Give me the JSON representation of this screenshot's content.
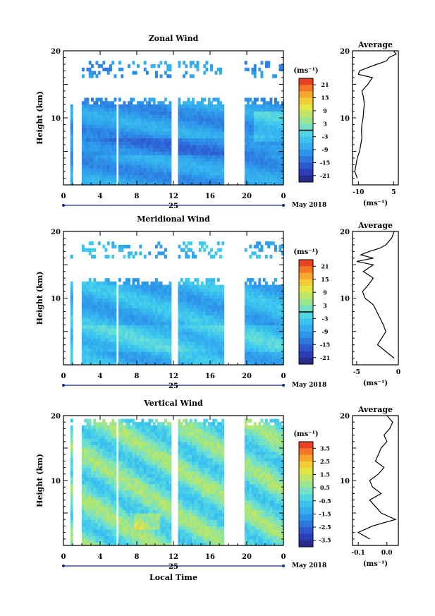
{
  "chart_data": [
    {
      "type": "heatmap",
      "title": "Zonal Wind",
      "ylabel": "Height (km)",
      "ylim": [
        0,
        20
      ],
      "yticks_labeled": [
        "10",
        "20"
      ],
      "xticks": [
        "0",
        "4",
        "8",
        "12",
        "16",
        "20",
        "0"
      ],
      "date_label": "25",
      "month_label": "May 2018",
      "colorbar": {
        "unit": "(ms⁻¹)",
        "ticks": [
          "21",
          "15",
          "9",
          "3",
          "-3",
          "-9",
          "-15",
          "-21"
        ],
        "range": [
          -24,
          24
        ],
        "contour_level": 0
      },
      "data_gaps_hours": [
        [
          5.75,
          6.0
        ],
        [
          11.7,
          12.3
        ],
        [
          17.3,
          19.75
        ]
      ],
      "data_top_km": 13,
      "upper_band_km": [
        16,
        18.5
      ],
      "average_profile": {
        "title": "Average",
        "xlabel": "(ms⁻¹)",
        "xticks": [
          "-10",
          "5"
        ],
        "xlim": [
          -12.5,
          7
        ],
        "profile": [
          [
            -10.5,
            1
          ],
          [
            -11.5,
            2
          ],
          [
            -11,
            3
          ],
          [
            -10.5,
            4
          ],
          [
            -9.5,
            5
          ],
          [
            -9,
            6
          ],
          [
            -8.5,
            7
          ],
          [
            -8.7,
            8
          ],
          [
            -8.5,
            9
          ],
          [
            -8,
            10
          ],
          [
            -7.8,
            11
          ],
          [
            -7.5,
            12
          ],
          [
            -7.8,
            13
          ],
          [
            -8.5,
            14
          ],
          [
            -6,
            15
          ],
          [
            -4,
            16
          ],
          [
            -10,
            16.5
          ],
          [
            -9.5,
            17
          ],
          [
            -6,
            17.5
          ],
          [
            -2,
            18
          ],
          [
            2,
            18.5
          ],
          [
            3,
            19
          ],
          [
            6,
            19.5
          ],
          [
            5,
            20
          ]
        ]
      }
    },
    {
      "type": "heatmap",
      "title": "Meridional Wind",
      "ylabel": "Height (km)",
      "ylim": [
        0,
        20
      ],
      "yticks_labeled": [
        "10",
        "20"
      ],
      "xticks": [
        "0",
        "4",
        "8",
        "12",
        "16",
        "20",
        "0"
      ],
      "date_label": "25",
      "month_label": "May 2018",
      "colorbar": {
        "unit": "(ms⁻¹)",
        "ticks": [
          "21",
          "15",
          "9",
          "3",
          "-3",
          "-9",
          "-15",
          "-21"
        ],
        "range": [
          -24,
          24
        ],
        "contour_level": 0
      },
      "data_gaps_hours": [
        [
          5.75,
          6.0
        ],
        [
          11.7,
          12.3
        ],
        [
          17.3,
          19.75
        ]
      ],
      "data_top_km": 13,
      "upper_band_km": [
        16,
        18.5
      ],
      "average_profile": {
        "title": "Average",
        "xlabel": "(ms⁻¹)",
        "xticks": [
          "-5",
          "0"
        ],
        "xlim": [
          -5.5,
          0
        ],
        "profile": [
          [
            -0.5,
            1
          ],
          [
            -1.5,
            2
          ],
          [
            -2.5,
            3
          ],
          [
            -2,
            4
          ],
          [
            -1.5,
            5
          ],
          [
            -1.8,
            6
          ],
          [
            -2.2,
            7
          ],
          [
            -2.6,
            8
          ],
          [
            -3,
            9
          ],
          [
            -4,
            10
          ],
          [
            -4.3,
            11
          ],
          [
            -3.6,
            12
          ],
          [
            -3,
            13
          ],
          [
            -4.2,
            14
          ],
          [
            -3,
            15
          ],
          [
            -5,
            15.5
          ],
          [
            -3,
            16
          ],
          [
            -4.5,
            16.5
          ],
          [
            -3.5,
            17
          ],
          [
            -2.2,
            17.5
          ],
          [
            -1.5,
            18
          ],
          [
            -0.8,
            19
          ],
          [
            -0.5,
            20
          ]
        ]
      }
    },
    {
      "type": "heatmap",
      "title": "Vertical Wind",
      "ylabel": "Height (km)",
      "xlabel": "Local Time",
      "ylim": [
        0,
        20
      ],
      "yticks_labeled": [
        "10",
        "20"
      ],
      "xticks": [
        "0",
        "4",
        "8",
        "12",
        "16",
        "20",
        "0"
      ],
      "date_label": "25",
      "month_label": "May 2018",
      "colorbar": {
        "unit": "(ms⁻¹)",
        "ticks": [
          "3.5",
          "2.5",
          "1.5",
          "0.5",
          "-0.5",
          "-1.5",
          "-2.5",
          "-3.5"
        ],
        "range": [
          -4,
          4
        ]
      },
      "data_gaps_hours": [
        [
          5.75,
          6.0
        ],
        [
          11.7,
          12.3
        ],
        [
          17.3,
          19.75
        ]
      ],
      "data_top_km": 19.5,
      "average_profile": {
        "title": "Average",
        "xlabel": "(ms⁻¹)",
        "xticks": [
          "-0.1",
          "0.0"
        ],
        "xlim": [
          -0.12,
          0.04
        ],
        "profile": [
          [
            -0.06,
            1
          ],
          [
            -0.1,
            2
          ],
          [
            -0.05,
            3
          ],
          [
            0.03,
            4
          ],
          [
            -0.02,
            5
          ],
          [
            -0.04,
            6
          ],
          [
            -0.06,
            7
          ],
          [
            -0.02,
            8
          ],
          [
            -0.05,
            9
          ],
          [
            -0.06,
            10
          ],
          [
            -0.03,
            11
          ],
          [
            -0.01,
            12
          ],
          [
            -0.04,
            13
          ],
          [
            -0.03,
            14
          ],
          [
            -0.02,
            15
          ],
          [
            0.0,
            16
          ],
          [
            -0.01,
            17
          ],
          [
            0.01,
            18
          ],
          [
            0.02,
            19
          ],
          [
            0.0,
            20
          ]
        ]
      }
    }
  ]
}
